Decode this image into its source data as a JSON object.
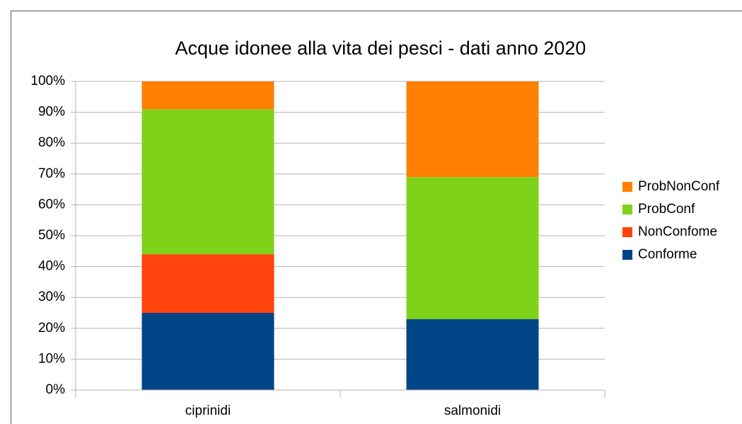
{
  "chart_data": {
    "type": "stacked_bar",
    "title": "Acque idonee alla vita dei pesci - dati anno 2020",
    "categories": [
      "ciprinidi",
      "salmonidi"
    ],
    "series": [
      {
        "name": "Conforme",
        "color": "#004586",
        "values": [
          25,
          23
        ]
      },
      {
        "name": "NonConfome",
        "color": "#ff420e",
        "values": [
          19,
          0
        ]
      },
      {
        "name": "ProbConf",
        "color": "#7ed21a",
        "values": [
          47,
          46
        ]
      },
      {
        "name": "ProbNonConf",
        "color": "#ff8000",
        "values": [
          9,
          31
        ]
      }
    ],
    "ylim": [
      0,
      100
    ],
    "yticks": [
      {
        "value": 0,
        "label": "0%"
      },
      {
        "value": 10,
        "label": "10%"
      },
      {
        "value": 20,
        "label": "20%"
      },
      {
        "value": 30,
        "label": "30%"
      },
      {
        "value": 40,
        "label": "40%"
      },
      {
        "value": 50,
        "label": "50%"
      },
      {
        "value": 60,
        "label": "60%"
      },
      {
        "value": 70,
        "label": "70%"
      },
      {
        "value": 80,
        "label": "80%"
      },
      {
        "value": 90,
        "label": "90%"
      },
      {
        "value": 100,
        "label": "100%"
      }
    ],
    "grid": true,
    "legend": "right"
  }
}
